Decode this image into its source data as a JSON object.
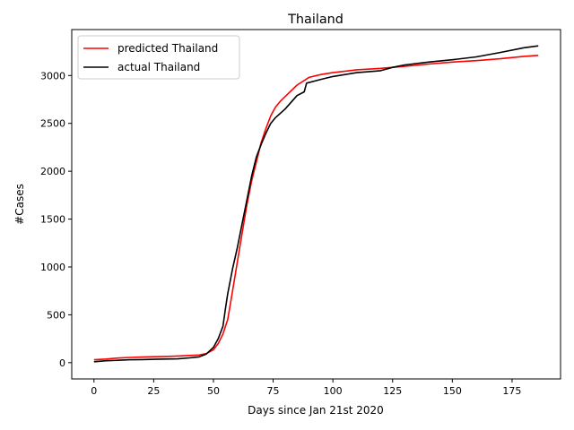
{
  "chart_data": {
    "type": "line",
    "title": "Thailand",
    "xlabel": "Days since Jan 21st 2020",
    "ylabel": "#Cases",
    "xlim": [
      -9.3,
      195.3
    ],
    "ylim": [
      -170,
      3480
    ],
    "x_ticks": [
      0,
      25,
      50,
      75,
      100,
      125,
      150,
      175
    ],
    "y_ticks": [
      0,
      500,
      1000,
      1500,
      2000,
      2500,
      3000
    ],
    "grid": false,
    "legend_position": "top-left",
    "series": [
      {
        "name": "predicted Thailand",
        "color": "#ff0000",
        "x": [
          0,
          5,
          10,
          15,
          20,
          25,
          30,
          35,
          40,
          44,
          47,
          50,
          52,
          54,
          56,
          58,
          60,
          62,
          64,
          66,
          68,
          70,
          72,
          74,
          76,
          78,
          80,
          85,
          90,
          95,
          100,
          110,
          120,
          130,
          140,
          150,
          160,
          170,
          180,
          186
        ],
        "y": [
          30,
          38,
          48,
          55,
          58,
          62,
          65,
          70,
          75,
          80,
          95,
          135,
          200,
          300,
          450,
          750,
          1050,
          1350,
          1650,
          1900,
          2100,
          2300,
          2450,
          2580,
          2670,
          2730,
          2780,
          2900,
          2980,
          3010,
          3030,
          3060,
          3075,
          3095,
          3120,
          3140,
          3155,
          3175,
          3200,
          3210
        ]
      },
      {
        "name": "actual Thailand",
        "color": "#000000",
        "x": [
          0,
          5,
          10,
          15,
          20,
          25,
          30,
          35,
          40,
          44,
          47,
          50,
          52,
          54,
          55,
          56,
          58,
          60,
          62,
          64,
          66,
          68,
          70,
          72,
          74,
          76,
          80,
          85,
          88,
          89,
          95,
          100,
          110,
          120,
          125,
          130,
          140,
          150,
          160,
          170,
          180,
          186
        ],
        "y": [
          10,
          20,
          25,
          30,
          32,
          35,
          38,
          40,
          50,
          60,
          90,
          160,
          250,
          380,
          560,
          720,
          980,
          1200,
          1450,
          1700,
          1950,
          2150,
          2280,
          2400,
          2500,
          2560,
          2650,
          2790,
          2830,
          2920,
          2960,
          2990,
          3030,
          3050,
          3085,
          3110,
          3140,
          3165,
          3195,
          3240,
          3290,
          3310
        ]
      }
    ]
  }
}
